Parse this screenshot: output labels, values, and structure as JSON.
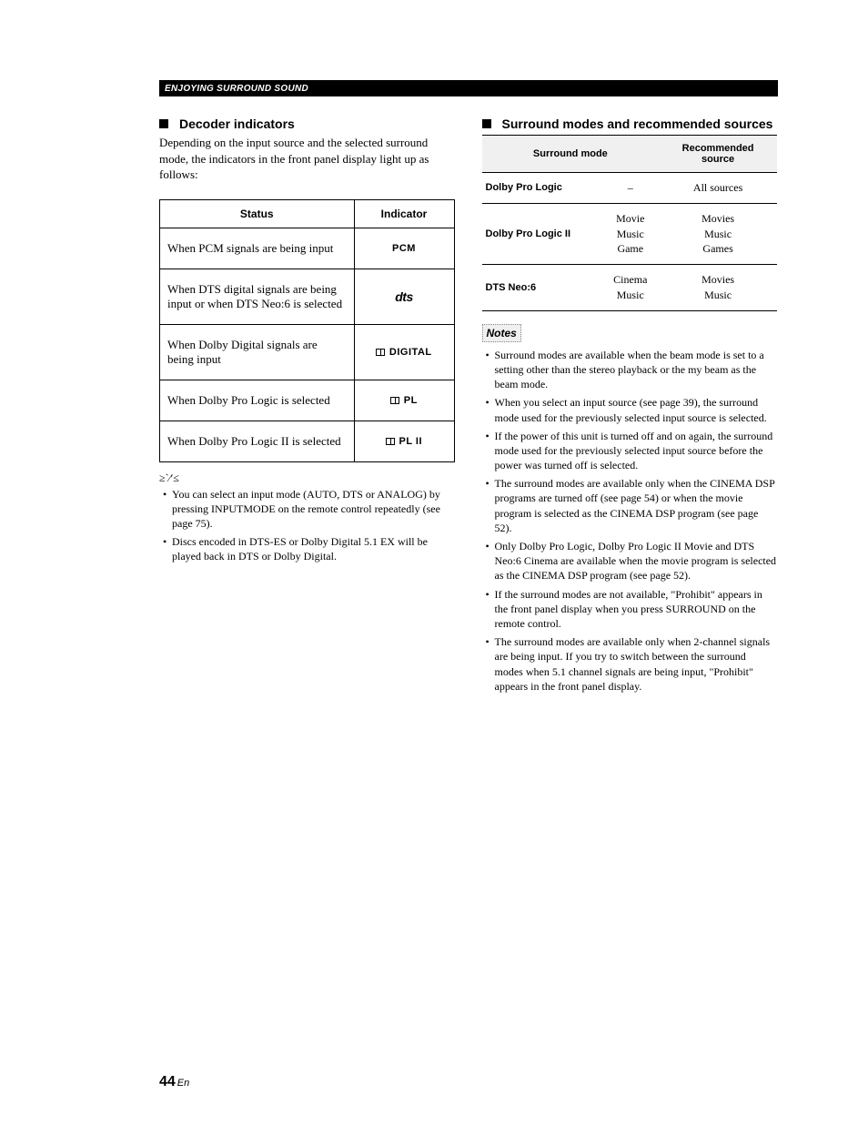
{
  "header": "ENJOYING SURROUND SOUND",
  "left": {
    "title": "Decoder indicators",
    "intro": "Depending on the input source and the selected surround mode, the indicators in the front panel display light up as follows:",
    "table": {
      "headers": [
        "Status",
        "Indicator"
      ],
      "rows": [
        {
          "status": "When PCM signals are being input",
          "indicator": "PCM",
          "style": "pcm"
        },
        {
          "status": "When DTS digital signals are being input or when DTS Neo:6 is selected",
          "indicator": "dts",
          "style": "dts"
        },
        {
          "status": "When Dolby Digital signals are being input",
          "indicator": "DIGITAL",
          "style": "dolby"
        },
        {
          "status": "When Dolby Pro Logic is selected",
          "indicator": "PL",
          "style": "dolby"
        },
        {
          "status": "When Dolby Pro Logic II is selected",
          "indicator": "PL II",
          "style": "dolby"
        }
      ]
    },
    "tips": [
      "You can select an input mode (AUTO, DTS or ANALOG) by pressing INPUTMODE on the remote control repeatedly (see page 75).",
      "Discs encoded in DTS-ES or Dolby Digital 5.1 EX will be played back in DTS or Dolby Digital."
    ]
  },
  "right": {
    "title": "Surround modes and recommended sources",
    "table": {
      "headers": [
        "Surround mode",
        "Recommended source"
      ],
      "rows": [
        {
          "mode": "Dolby Pro Logic",
          "sub": "–",
          "rec": "All sources"
        },
        {
          "mode": "Dolby Pro Logic II",
          "sub": "Movie\nMusic\nGame",
          "rec": "Movies\nMusic\nGames"
        },
        {
          "mode": "DTS Neo:6",
          "sub": "Cinema\nMusic",
          "rec": "Movies\nMusic"
        }
      ]
    },
    "notes_label": "Notes",
    "notes": [
      "Surround modes are available when the beam mode is set to a setting other than the stereo playback or the my beam as the beam mode.",
      "When you select an input source (see page 39), the surround mode used for the previously selected input source is selected.",
      "If the power of this unit is turned off and on again, the surround mode used for the previously selected input source before the power was turned off is selected.",
      "The surround modes are available only when the CINEMA DSP programs are turned off (see page 54) or when the movie program is selected as the CINEMA DSP program (see page 52).",
      "Only Dolby Pro Logic, Dolby Pro Logic II Movie and DTS Neo:6 Cinema are available when the movie program is selected as the CINEMA DSP program (see page 52).",
      "If the surround modes are not available, \"Prohibit\" appears in the front panel display when you press SURROUND on the remote control.",
      "The surround modes are available only when 2-channel signals are being input. If you try to switch between the surround modes when 5.1 channel signals are being input, \"Prohibit\" appears in the front panel display."
    ]
  },
  "page_number": "44",
  "page_lang": "En"
}
